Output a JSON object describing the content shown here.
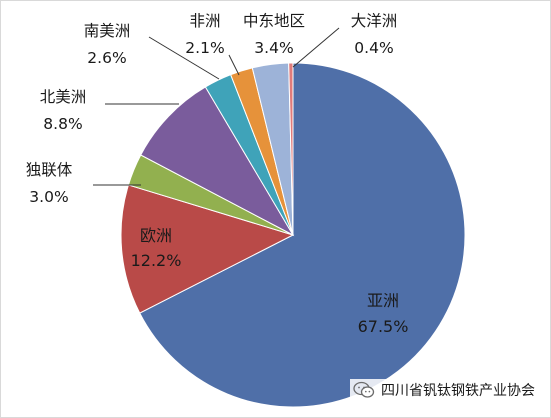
{
  "chart_data": {
    "type": "pie",
    "slices": [
      {
        "name": "亚洲",
        "value": 67.5,
        "label": "67.5%",
        "color": "#4f6fa8"
      },
      {
        "name": "欧洲",
        "value": 12.2,
        "label": "12.2%",
        "color": "#b94a48"
      },
      {
        "name": "独联体",
        "value": 3.0,
        "label": "3.0%",
        "color": "#92b04f"
      },
      {
        "name": "北美洲",
        "value": 8.8,
        "label": "8.8%",
        "color": "#7a5c9c"
      },
      {
        "name": "南美洲",
        "value": 2.6,
        "label": "2.6%",
        "color": "#3fa3b9"
      },
      {
        "name": "非洲",
        "value": 2.1,
        "label": "2.1%",
        "color": "#e6923a"
      },
      {
        "name": "中东地区",
        "value": 3.4,
        "label": "3.4%",
        "color": "#9db3d8"
      },
      {
        "name": "大洋洲",
        "value": 0.4,
        "label": "0.4%",
        "color": "#e07b7b"
      }
    ]
  },
  "watermark": {
    "text": "四川省钒钛钢铁产业协会",
    "icon": "wechat-icon"
  }
}
